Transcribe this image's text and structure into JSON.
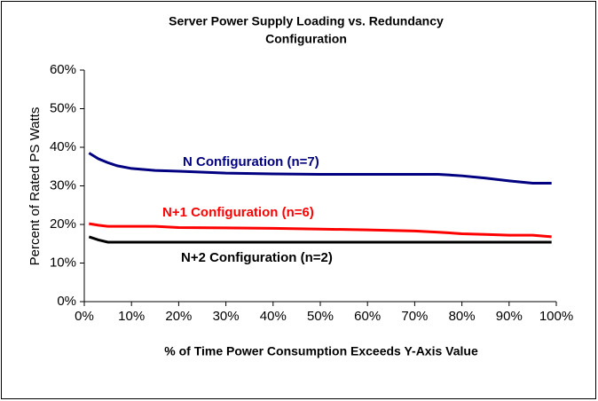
{
  "chart_data": {
    "type": "line",
    "title": [
      "Server Power Supply Loading vs. Redundancy",
      "Configuration"
    ],
    "x_label": "% of Time Power Consumption Exceeds Y-Axis Value",
    "y_label": "Percent of Rated PS Watts",
    "x": [
      1,
      3,
      5,
      7,
      10,
      15,
      20,
      30,
      40,
      50,
      60,
      70,
      75,
      80,
      85,
      90,
      95,
      99
    ],
    "series": [
      {
        "name": "N Configuration (n=7)",
        "color": "#000080",
        "values": [
          38.5,
          37,
          36,
          35.2,
          34.5,
          34,
          33.8,
          33.3,
          33.1,
          33,
          33,
          33,
          33,
          32.6,
          32,
          31.3,
          30.7,
          30.7
        ]
      },
      {
        "name": "N+1 Configuration (n=6)",
        "color": "#ff0000",
        "values": [
          20.2,
          19.8,
          19.5,
          19.5,
          19.5,
          19.5,
          19.2,
          19.1,
          19,
          18.8,
          18.6,
          18.3,
          18,
          17.6,
          17.4,
          17.2,
          17.2,
          16.8
        ]
      },
      {
        "name": "N+2 Configuration (n=2)",
        "color": "#000000",
        "values": [
          16.8,
          16,
          15.4,
          15.4,
          15.4,
          15.4,
          15.4,
          15.4,
          15.4,
          15.4,
          15.4,
          15.4,
          15.4,
          15.4,
          15.4,
          15.4,
          15.4,
          15.4
        ]
      }
    ],
    "xlim": [
      0,
      100
    ],
    "xticks": [
      {
        "value": 0,
        "label": "0%"
      },
      {
        "value": 10,
        "label": "10%"
      },
      {
        "value": 20,
        "label": "20%"
      },
      {
        "value": 30,
        "label": "30%"
      },
      {
        "value": 40,
        "label": "40%"
      },
      {
        "value": 50,
        "label": "50%"
      },
      {
        "value": 60,
        "label": "60%"
      },
      {
        "value": 70,
        "label": "70%"
      },
      {
        "value": 80,
        "label": "80%"
      },
      {
        "value": 90,
        "label": "90%"
      },
      {
        "value": 100,
        "label": "100%"
      }
    ],
    "ylim": [
      0,
      60
    ],
    "yticks": [
      {
        "value": 0,
        "label": "0%"
      },
      {
        "value": 10,
        "label": "10%"
      },
      {
        "value": 20,
        "label": "20%"
      },
      {
        "value": 30,
        "label": "30%"
      },
      {
        "value": 40,
        "label": "40%"
      },
      {
        "value": 50,
        "label": "50%"
      },
      {
        "value": 60,
        "label": "60%"
      }
    ],
    "grid": false
  }
}
